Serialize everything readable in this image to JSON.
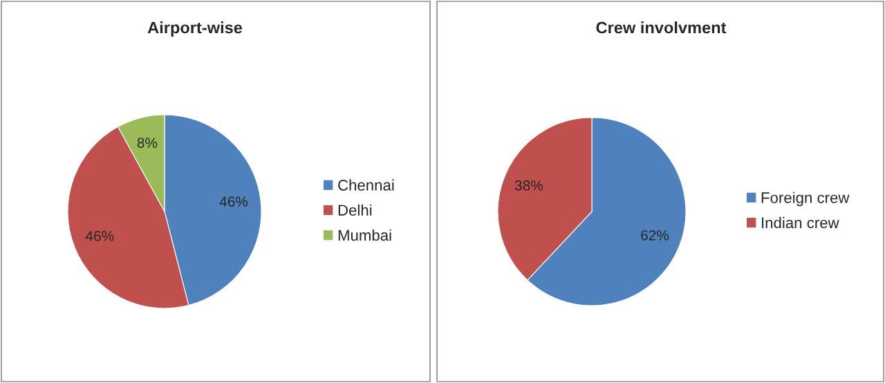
{
  "chart_data": [
    {
      "type": "pie",
      "title": "Airport-wise",
      "categories": [
        "Chennai",
        "Delhi",
        "Mumbai"
      ],
      "values": [
        46,
        46,
        8
      ],
      "value_labels": [
        "46%",
        "46%",
        "8%"
      ],
      "colors": [
        "#4f81bd",
        "#c0504d",
        "#9bbb59"
      ],
      "legend": "right"
    },
    {
      "type": "pie",
      "title": "Crew involvment",
      "categories": [
        "Foreign crew",
        "Indian crew"
      ],
      "values": [
        62,
        38
      ],
      "value_labels": [
        "62%",
        "38%"
      ],
      "colors": [
        "#4f81bd",
        "#c0504d"
      ],
      "legend": "right"
    }
  ]
}
